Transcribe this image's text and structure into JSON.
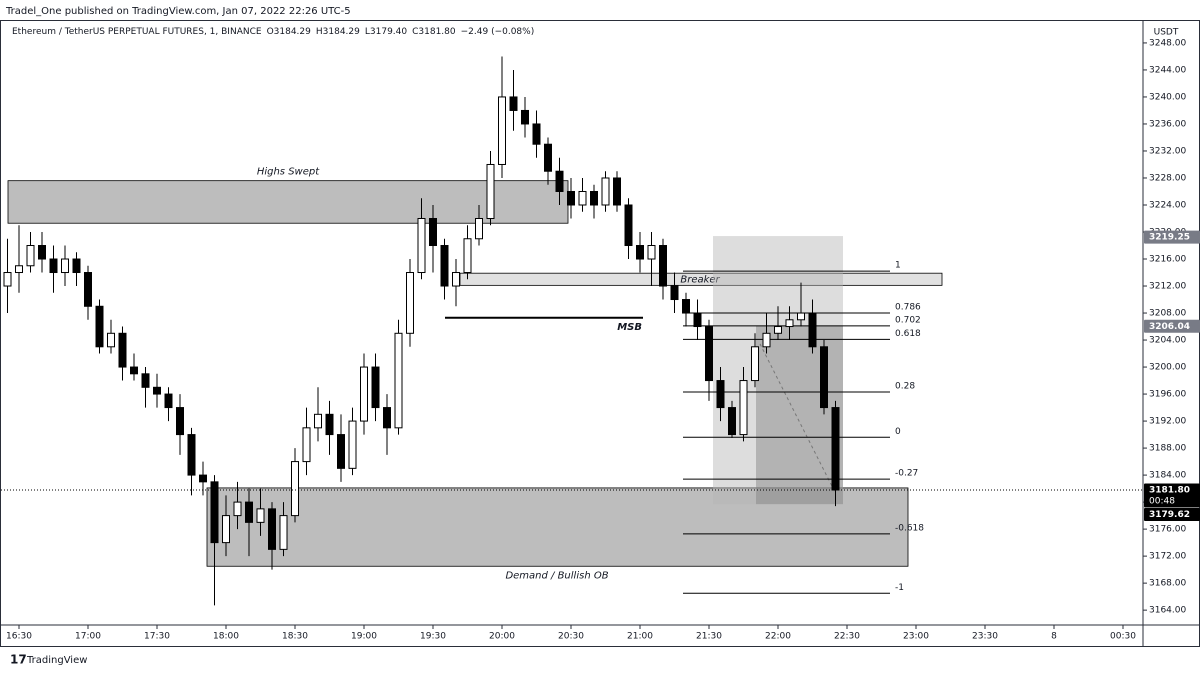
{
  "header": {
    "publisher": "Tradel_One published on TradingView.com, Jan 07, 2022 22:26 UTC-5"
  },
  "chart_data": {
    "type": "candlestick",
    "title": "Ethereum / TetherUS PERPETUAL FUTURES, 1, BINANCE",
    "readout": [
      "O3184.29",
      "H3184.29",
      "L3179.40",
      "C3181.80",
      "−2.49 (−0.08%)"
    ],
    "x": [
      "16:25",
      "16:30",
      "16:35",
      "16:40",
      "16:45",
      "16:50",
      "16:55",
      "17:00",
      "17:05",
      "17:10",
      "17:15",
      "17:20",
      "17:25",
      "17:30",
      "17:35",
      "17:40",
      "17:45",
      "17:50",
      "17:55",
      "18:00",
      "18:05",
      "18:10",
      "18:15",
      "18:20",
      "18:25",
      "18:30",
      "18:35",
      "18:40",
      "18:45",
      "18:50",
      "18:55",
      "19:00",
      "19:05",
      "19:10",
      "19:15",
      "19:20",
      "19:25",
      "19:30",
      "19:35",
      "19:40",
      "19:45",
      "19:50",
      "19:55",
      "20:00",
      "20:05",
      "20:10",
      "20:15",
      "20:20",
      "20:25",
      "20:30",
      "20:35",
      "20:40",
      "20:45",
      "20:50",
      "20:55",
      "21:00",
      "21:05",
      "21:10",
      "21:15",
      "21:20",
      "21:25",
      "21:30",
      "21:35",
      "21:40",
      "21:45",
      "21:50",
      "21:55",
      "22:00",
      "22:05",
      "22:10",
      "22:15",
      "22:20",
      "22:25"
    ],
    "open": [
      3212,
      3214,
      3215,
      3218,
      3216,
      3214,
      3216,
      3214,
      3209,
      3203,
      3205,
      3200,
      3199,
      3197,
      3196,
      3194,
      3190,
      3184,
      3183,
      3174,
      3178,
      3180,
      3177,
      3179,
      3173,
      3178,
      3186,
      3191,
      3193,
      3190,
      3185,
      3192,
      3200,
      3194,
      3191,
      3205,
      3214,
      3222,
      3218,
      3212,
      3214,
      3219,
      3222,
      3230,
      3240,
      3238,
      3236,
      3233,
      3229,
      3226,
      3224,
      3226,
      3224,
      3228,
      3224,
      3218,
      3216,
      3218,
      3212,
      3210,
      3208,
      3206,
      3198,
      3194,
      3190,
      3198,
      3203,
      3205,
      3206,
      3207,
      3208,
      3203,
      3194
    ],
    "high": [
      3219,
      3221,
      3220,
      3220,
      3218,
      3218,
      3217,
      3215,
      3210,
      3207,
      3206,
      3202,
      3200,
      3199,
      3197,
      3196,
      3191,
      3186,
      3184,
      3181,
      3183,
      3182,
      3182,
      3180,
      3180,
      3188,
      3194,
      3197,
      3195,
      3193,
      3194,
      3202,
      3202,
      3196,
      3207,
      3216,
      3225,
      3224,
      3219,
      3216,
      3221,
      3224,
      3232,
      3246,
      3244,
      3240,
      3238,
      3234,
      3231,
      3228,
      3228,
      3227,
      3229,
      3229,
      3225,
      3220,
      3220,
      3219,
      3214,
      3211,
      3210,
      3207,
      3200,
      3195,
      3200,
      3205,
      3208,
      3209,
      3209,
      3212.5,
      3210,
      3204,
      3195
    ],
    "low": [
      3208,
      3211,
      3214,
      3214,
      3211,
      3212,
      3212,
      3207,
      3202,
      3202,
      3198,
      3198,
      3194,
      3194,
      3192,
      3187,
      3181,
      3181,
      3164.7,
      3172,
      3176,
      3172,
      3175,
      3170,
      3172,
      3177,
      3184,
      3189,
      3187,
      3183,
      3184,
      3190,
      3192,
      3187,
      3190,
      3203,
      3213,
      3214,
      3210,
      3209,
      3213,
      3218,
      3221,
      3228,
      3235,
      3234,
      3231,
      3227,
      3224,
      3222,
      3223,
      3222,
      3223,
      3223,
      3216,
      3214,
      3212,
      3210,
      3208,
      3206,
      3204,
      3195,
      3192,
      3189.5,
      3189,
      3197,
      3202,
      3204,
      3204,
      3206,
      3202,
      3193,
      3179.4
    ],
    "close": [
      3214,
      3215,
      3218,
      3216,
      3214,
      3216,
      3214,
      3209,
      3203,
      3205,
      3200,
      3199,
      3197,
      3196,
      3194,
      3190,
      3184,
      3183,
      3174,
      3178,
      3180,
      3177,
      3179,
      3173,
      3178,
      3186,
      3191,
      3193,
      3190,
      3185,
      3192,
      3200,
      3194,
      3191,
      3205,
      3214,
      3222,
      3218,
      3212,
      3214,
      3219,
      3222,
      3230,
      3240,
      3238,
      3236,
      3233,
      3229,
      3226,
      3224,
      3226,
      3224,
      3228,
      3224,
      3218,
      3216,
      3218,
      3212,
      3210,
      3208,
      3206,
      3198,
      3194,
      3190,
      3198,
      3203,
      3205,
      3206,
      3207,
      3208,
      3203,
      3194,
      3181.8
    ],
    "up_color": "#ffffff",
    "down_color": "#000000",
    "y_unit": "USDT",
    "ylim": [
      3161.8,
      3251.1
    ],
    "yticks": [
      {
        "value": 3164,
        "label": "3164.00"
      },
      {
        "value": 3168,
        "label": "3168.00"
      },
      {
        "value": 3172,
        "label": "3172.00"
      },
      {
        "value": 3176,
        "label": "3176.00"
      },
      {
        "value": 3180,
        "label": "3180.00"
      },
      {
        "value": 3184,
        "label": "3184.00"
      },
      {
        "value": 3188,
        "label": "3188.00"
      },
      {
        "value": 3192,
        "label": "3192.00"
      },
      {
        "value": 3196,
        "label": "3196.00"
      },
      {
        "value": 3200,
        "label": "3200.00"
      },
      {
        "value": 3204,
        "label": "3204.00"
      },
      {
        "value": 3208,
        "label": "3208.00"
      },
      {
        "value": 3212,
        "label": "3212.00"
      },
      {
        "value": 3216,
        "label": "3216.00"
      },
      {
        "value": 3220,
        "label": "3220.00"
      },
      {
        "value": 3224,
        "label": "3224.00"
      },
      {
        "value": 3228,
        "label": "3228.00"
      },
      {
        "value": 3232,
        "label": "3232.00"
      },
      {
        "value": 3236,
        "label": "3236.00"
      },
      {
        "value": 3240,
        "label": "3240.00"
      },
      {
        "value": 3244,
        "label": "3244.00"
      },
      {
        "value": 3248,
        "label": "3248.00"
      }
    ],
    "xticks": [
      "16:30",
      "17:00",
      "17:30",
      "18:00",
      "18:30",
      "19:00",
      "19:30",
      "20:00",
      "20:30",
      "21:00",
      "21:30",
      "22:00",
      "22:30",
      "23:00",
      "23:30",
      "8",
      "00:30"
    ],
    "price_tags": [
      {
        "value": 3219.25,
        "color": "#787b86"
      },
      {
        "value": 3206.04,
        "color": "#787b86"
      },
      {
        "value": 3181.8,
        "label": "3181.80",
        "countdown": "00:48",
        "color": "#000000"
      },
      {
        "value": 3179.62,
        "color": "#000000"
      }
    ],
    "zones": [
      {
        "label": "Highs Swept",
        "top": 3227.6,
        "bottom": 3221.3,
        "color": "#b2b2b2"
      },
      {
        "label": "Breaker",
        "top": 3213.9,
        "bottom": 3212.1,
        "color": "#dcdcdc"
      },
      {
        "label": "Demand / Bullish OB",
        "top": 3182.1,
        "bottom": 3170.5,
        "color": "#b2b2b2"
      }
    ],
    "msb": {
      "label": "MSB",
      "value": 3207.3
    },
    "fib_levels": [
      {
        "label": "1",
        "value": 3214.2
      },
      {
        "label": "0.786",
        "value": 3208.0
      },
      {
        "label": "0.702",
        "value": 3206.1
      },
      {
        "label": "0.618",
        "value": 3204.1
      },
      {
        "label": "0.28",
        "value": 3196.3
      },
      {
        "label": "0",
        "value": 3189.6
      },
      {
        "label": "-0.27",
        "value": 3183.4
      },
      {
        "label": "-0.618",
        "value": 3175.3
      },
      {
        "label": "-1",
        "value": 3166.5
      }
    ],
    "position": {
      "top": 3219.4,
      "entry": 3206.1,
      "bottom": 3179.7
    }
  },
  "footer": {
    "brand": "TradingView"
  }
}
